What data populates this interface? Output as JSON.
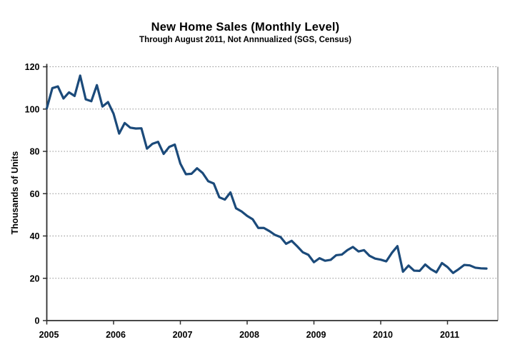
{
  "chart": {
    "title": "New Home Sales (Monthly Level)",
    "subtitle": "Through August 2011, Not Annnualized (SGS, Census)",
    "ylabel": "Thousands of Units"
  },
  "chart_data": {
    "type": "line",
    "title": "New Home Sales (Monthly Level)",
    "subtitle": "Through August 2011, Not Annnualized (SGS, Census)",
    "xlabel": "",
    "ylabel": "Thousands of Units",
    "ylim": [
      0,
      120
    ],
    "yticks": [
      0,
      20,
      40,
      60,
      80,
      100,
      120
    ],
    "xticks": [
      "2005",
      "2006",
      "2007",
      "2008",
      "2009",
      "2010",
      "2011"
    ],
    "x_start_label": "Jan 2005",
    "x_end_label": "Aug 2011",
    "grid": "dotted-horizontal",
    "legend": "none",
    "line_color": "#1b4a7a",
    "grid_color": "#909090",
    "axis_color": "#2f2f2f",
    "border_color": "#8c8c8c",
    "series": [
      {
        "name": "New Home Sales (thousands of units, monthly)",
        "values": [
          100.3,
          109.9,
          110.7,
          105.0,
          107.9,
          106.2,
          115.8,
          104.6,
          103.7,
          111.3,
          101.2,
          103.3,
          97.8,
          88.4,
          93.4,
          91.2,
          90.8,
          90.9,
          81.3,
          83.6,
          84.5,
          78.8,
          82.1,
          83.2,
          74.2,
          69.2,
          69.4,
          72.0,
          69.8,
          65.9,
          64.8,
          58.3,
          57.2,
          60.6,
          53.1,
          51.6,
          49.5,
          47.9,
          43.8,
          43.8,
          42.3,
          40.5,
          39.5,
          36.3,
          37.7,
          35.1,
          32.3,
          31.1,
          27.6,
          29.5,
          28.3,
          28.7,
          30.9,
          31.2,
          33.3,
          34.8,
          32.7,
          33.3,
          30.6,
          29.3,
          28.8,
          28.0,
          32.0,
          35.2,
          23.1,
          26.0,
          23.6,
          23.5,
          26.5,
          24.3,
          22.8,
          27.2,
          25.3,
          22.5,
          24.3,
          26.3,
          26.1,
          25.0,
          24.7,
          24.6
        ]
      }
    ]
  }
}
